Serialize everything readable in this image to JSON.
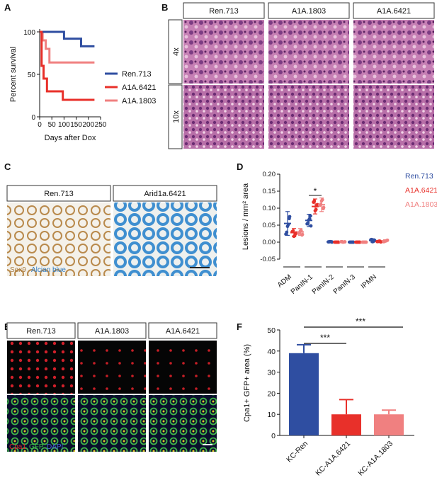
{
  "panels": {
    "A": {
      "letter": "A",
      "ylabel": "Percent survival",
      "xlabel": "Days after Dox",
      "yticks": [
        "0",
        "50",
        "100"
      ],
      "xticks": [
        "0",
        "50",
        "100",
        "150",
        "200",
        "250"
      ],
      "legend": [
        "Ren.713",
        "A1A.6421",
        "A1A.1803"
      ]
    },
    "B": {
      "letter": "B",
      "cols": [
        "Ren.713",
        "A1A.1803",
        "A1A.6421"
      ],
      "rows": [
        "4x",
        "10x"
      ]
    },
    "C": {
      "letter": "C",
      "cols": [
        "Ren.713",
        "Arid1a.6421"
      ],
      "stain1": "Sox9",
      "stain2": "Alcian blue"
    },
    "D": {
      "letter": "D",
      "ylabel": "Lesions / mm² area",
      "yticks": [
        "-0.05",
        "0.00",
        "0.05",
        "0.10",
        "0.15",
        "0.20"
      ],
      "categories": [
        "ADM",
        "PanIN-1",
        "PanIN-2",
        "PanIN-3",
        "IPMN"
      ],
      "legend": [
        "Ren.713",
        "A1A.6421",
        "A1A.1803"
      ],
      "sig": "*"
    },
    "E": {
      "letter": "E",
      "cols": [
        "Ren.713",
        "A1A.1803",
        "A1A.6421"
      ],
      "stain1": "Cpa1",
      "stain2": "GFP",
      "stain3": "DAPI"
    },
    "F": {
      "letter": "F",
      "ylabel": "Cpa1+ GFP+ area (%)",
      "yticks": [
        "0",
        "10",
        "20",
        "30",
        "40",
        "50"
      ],
      "categories": [
        "KC-Ren",
        "KC-A1A.6421",
        "KC-A1A.1803"
      ],
      "sig1": "***",
      "sig2": "***"
    }
  },
  "colors": {
    "ren": "#2f4ea1",
    "a6421": "#e8302a",
    "a1803": "#f08080"
  },
  "chart_data": [
    {
      "type": "line",
      "panel": "A",
      "xlabel": "Days after Dox",
      "ylabel": "Percent survival",
      "xlim": [
        0,
        250
      ],
      "ylim": [
        0,
        100
      ],
      "series": [
        {
          "name": "Ren.713",
          "x": [
            0,
            100,
            100,
            170,
            170,
            225
          ],
          "values": [
            100,
            100,
            92,
            92,
            83,
            83
          ]
        },
        {
          "name": "A1A.6421",
          "x": [
            0,
            8,
            8,
            16,
            16,
            30,
            30,
            95,
            95,
            225
          ],
          "values": [
            100,
            100,
            60,
            60,
            45,
            45,
            30,
            30,
            20,
            20
          ]
        },
        {
          "name": "A1A.1803",
          "x": [
            0,
            12,
            12,
            25,
            25,
            40,
            40,
            225
          ],
          "values": [
            100,
            100,
            90,
            90,
            80,
            80,
            64,
            64
          ]
        }
      ]
    },
    {
      "type": "scatter",
      "panel": "D",
      "ylabel": "Lesions / mm² area",
      "ylim": [
        -0.05,
        0.2
      ],
      "categories": [
        "ADM",
        "PanIN-1",
        "PanIN-2",
        "PanIN-3",
        "IPMN"
      ],
      "series": [
        {
          "name": "Ren.713",
          "mean": [
            0.055,
            0.064,
            0.001,
            0.0,
            0.005
          ],
          "sd": [
            0.035,
            0.018,
            0.001,
            0.0,
            0.005
          ]
        },
        {
          "name": "A1A.6421",
          "mean": [
            0.028,
            0.105,
            0.0,
            0.0,
            0.002
          ],
          "sd": [
            0.012,
            0.022,
            0.0,
            0.0,
            0.002
          ]
        },
        {
          "name": "A1A.1803",
          "mean": [
            0.03,
            0.11,
            0.001,
            0.0,
            0.004
          ],
          "sd": [
            0.01,
            0.02,
            0.001,
            0.0,
            0.003
          ]
        }
      ]
    },
    {
      "type": "bar",
      "panel": "F",
      "ylabel": "Cpa1+ GFP+ area (%)",
      "ylim": [
        0,
        50
      ],
      "categories": [
        "KC-Ren",
        "KC-A1A.6421",
        "KC-A1A.1803"
      ],
      "values": [
        39,
        10,
        10
      ],
      "errors": [
        4,
        7,
        2
      ]
    }
  ]
}
